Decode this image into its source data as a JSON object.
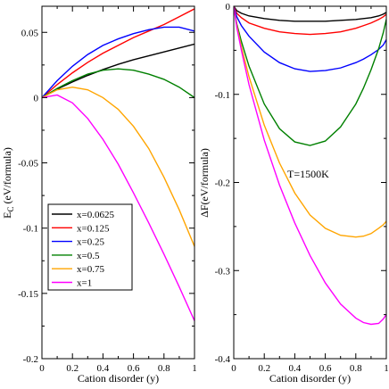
{
  "chart_data": [
    {
      "type": "line",
      "xlabel": "Cation disorder (y)",
      "ylabel": "E_C (eV/formula)",
      "ylabel_main": "E",
      "ylabel_sub": "C",
      "ylabel_rest": " (eV/formula)",
      "xlim": [
        0,
        1
      ],
      "ylim": [
        -0.2,
        0.07
      ],
      "xticks": [
        0,
        0.2,
        0.4,
        0.6,
        0.8,
        1
      ],
      "xtick_labels": [
        "0",
        "0.2",
        "0.4",
        "0.6",
        "0.8",
        "1"
      ],
      "yticks": [
        -0.2,
        -0.15,
        -0.1,
        -0.05,
        0,
        0.05
      ],
      "ytick_labels": [
        "-0.2",
        "-0.15",
        "-0.1",
        "-0.05",
        "0",
        "0.05"
      ],
      "legend_position": "lower-left",
      "x": [
        0,
        0.1,
        0.2,
        0.3,
        0.4,
        0.5,
        0.6,
        0.7,
        0.8,
        0.9,
        1.0
      ],
      "series": [
        {
          "name": "x=0.0625",
          "color": "#000000",
          "values": [
            0,
            0.0065,
            0.012,
            0.017,
            0.0215,
            0.0255,
            0.029,
            0.032,
            0.035,
            0.038,
            0.041
          ]
        },
        {
          "name": "x=0.125",
          "color": "#ff0000",
          "values": [
            0,
            0.01,
            0.019,
            0.027,
            0.034,
            0.04,
            0.046,
            0.051,
            0.056,
            0.062,
            0.068
          ]
        },
        {
          "name": "x=0.25",
          "color": "#0000ff",
          "values": [
            0,
            0.013,
            0.024,
            0.033,
            0.04,
            0.045,
            0.049,
            0.052,
            0.054,
            0.054,
            0.051
          ]
        },
        {
          "name": "x=0.5",
          "color": "#008000",
          "values": [
            0,
            0.007,
            0.013,
            0.018,
            0.021,
            0.022,
            0.021,
            0.018,
            0.014,
            0.008,
            0.0
          ]
        },
        {
          "name": "x=0.75",
          "color": "#ffa500",
          "values": [
            0,
            0.006,
            0.008,
            0.006,
            0.0,
            -0.009,
            -0.022,
            -0.039,
            -0.061,
            -0.086,
            -0.114
          ]
        },
        {
          "name": "x=1",
          "color": "#ff00ff",
          "values": [
            0,
            0.002,
            -0.004,
            -0.016,
            -0.032,
            -0.051,
            -0.073,
            -0.096,
            -0.12,
            -0.145,
            -0.171
          ]
        }
      ]
    },
    {
      "type": "line",
      "xlabel": "Cation disorder (y)",
      "ylabel": "ΔF(eV/formula)",
      "xlim": [
        0,
        1
      ],
      "ylim": [
        -0.4,
        0
      ],
      "xticks": [
        0,
        0.2,
        0.4,
        0.6,
        0.8,
        1
      ],
      "xtick_labels": [
        "0",
        "0.2",
        "0.4",
        "0.6",
        "0.8",
        "1"
      ],
      "yticks": [
        -0.4,
        -0.3,
        -0.2,
        -0.1,
        0
      ],
      "ytick_labels": [
        "-0.4",
        "-0.3",
        "-0.2",
        "-0.1",
        "0"
      ],
      "annotation": "T=1500K",
      "x": [
        0,
        0.02,
        0.05,
        0.1,
        0.2,
        0.3,
        0.4,
        0.5,
        0.6,
        0.7,
        0.8,
        0.85,
        0.9,
        0.95,
        0.98,
        1.0
      ],
      "series": [
        {
          "name": "x=0.0625",
          "color": "#000000",
          "values": [
            0,
            -0.005,
            -0.008,
            -0.011,
            -0.014,
            -0.016,
            -0.017,
            -0.017,
            -0.017,
            -0.016,
            -0.015,
            -0.014,
            -0.013,
            -0.011,
            -0.009,
            -0.007
          ]
        },
        {
          "name": "x=0.125",
          "color": "#ff0000",
          "values": [
            0,
            -0.008,
            -0.013,
            -0.019,
            -0.025,
            -0.029,
            -0.031,
            -0.032,
            -0.031,
            -0.029,
            -0.025,
            -0.022,
            -0.019,
            -0.015,
            -0.012,
            -0.009
          ]
        },
        {
          "name": "x=0.25",
          "color": "#0000ff",
          "values": [
            0,
            -0.012,
            -0.022,
            -0.034,
            -0.052,
            -0.064,
            -0.071,
            -0.074,
            -0.073,
            -0.07,
            -0.064,
            -0.06,
            -0.055,
            -0.049,
            -0.044,
            -0.038
          ]
        },
        {
          "name": "x=0.5",
          "color": "#008000",
          "values": [
            0,
            -0.02,
            -0.04,
            -0.068,
            -0.111,
            -0.139,
            -0.154,
            -0.158,
            -0.153,
            -0.137,
            -0.111,
            -0.093,
            -0.072,
            -0.048,
            -0.03,
            -0.015
          ]
        },
        {
          "name": "x=0.75",
          "color": "#ffa500",
          "values": [
            0,
            -0.022,
            -0.046,
            -0.08,
            -0.135,
            -0.178,
            -0.212,
            -0.237,
            -0.252,
            -0.26,
            -0.262,
            -0.261,
            -0.258,
            -0.252,
            -0.248,
            -0.244
          ]
        },
        {
          "name": "x=1",
          "color": "#ff00ff",
          "values": [
            0,
            -0.024,
            -0.05,
            -0.089,
            -0.152,
            -0.203,
            -0.246,
            -0.283,
            -0.314,
            -0.338,
            -0.354,
            -0.359,
            -0.361,
            -0.36,
            -0.355,
            -0.35
          ]
        }
      ]
    }
  ]
}
